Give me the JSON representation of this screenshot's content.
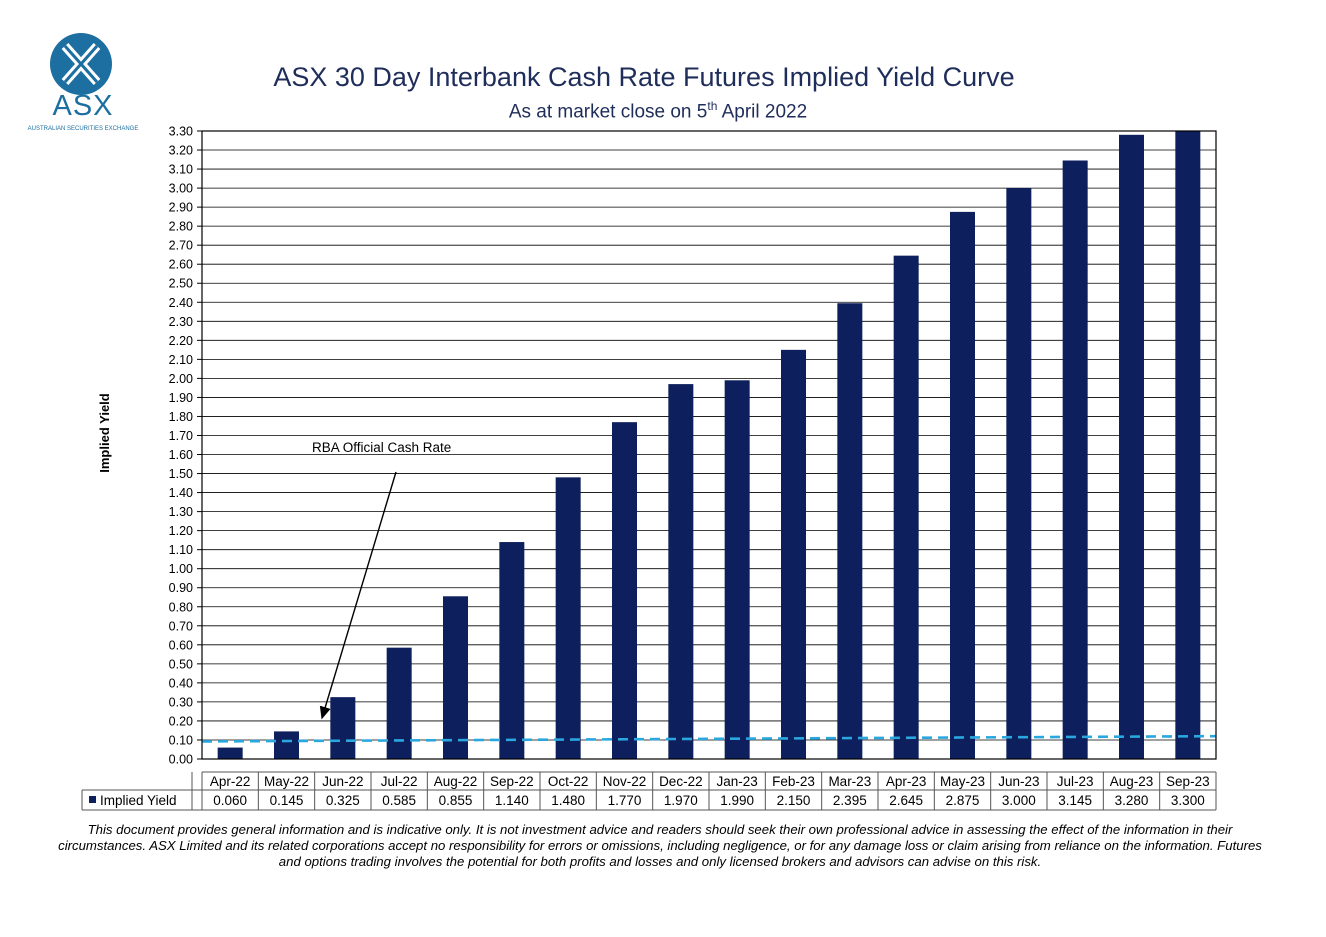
{
  "logo": {
    "wordmark": "ASX",
    "subtitle": "AUSTRALIAN SECURITIES EXCHANGE",
    "mark_color": "#1c6fa0"
  },
  "header": {
    "title": "ASX 30 Day Interbank Cash Rate Futures Implied Yield Curve",
    "subtitle_prefix": "As at market close on 5",
    "subtitle_sup": "th",
    "subtitle_suffix": " April 2022"
  },
  "chart_data": {
    "type": "bar",
    "title": "ASX 30 Day Interbank Cash Rate Futures Implied Yield Curve",
    "ylabel": "Implied Yield",
    "xlabel": "",
    "ylim": [
      0,
      3.3
    ],
    "ytick_step": 0.1,
    "grid": true,
    "categories": [
      "Apr-22",
      "May-22",
      "Jun-22",
      "Jul-22",
      "Aug-22",
      "Sep-22",
      "Oct-22",
      "Nov-22",
      "Dec-22",
      "Jan-23",
      "Feb-23",
      "Mar-23",
      "Apr-23",
      "May-23",
      "Jun-23",
      "Jul-23",
      "Aug-23",
      "Sep-23"
    ],
    "series": [
      {
        "name": "Implied Yield",
        "color": "#0d1f5c",
        "values": [
          0.06,
          0.145,
          0.325,
          0.585,
          0.855,
          1.14,
          1.48,
          1.77,
          1.97,
          1.99,
          2.15,
          2.395,
          2.645,
          2.875,
          3.0,
          3.145,
          3.28,
          3.3
        ],
        "labels": [
          "0.060",
          "0.145",
          "0.325",
          "0.585",
          "0.855",
          "1.140",
          "1.480",
          "1.770",
          "1.970",
          "1.990",
          "2.150",
          "2.395",
          "2.645",
          "2.875",
          "3.000",
          "3.145",
          "3.280",
          "3.300"
        ]
      }
    ],
    "reference_line": {
      "value": 0.1,
      "value_end": 0.12,
      "color": "#2aa7de",
      "style": "dashed"
    },
    "annotation": {
      "text": "RBA Official Cash Rate"
    },
    "data_table": true
  },
  "footer": {
    "disclaimer": "This document provides general information and is indicative only. It is not investment advice and readers should seek their own professional advice in assessing the effect of the information in their circumstances. ASX Limited and its related corporations accept no responsibility for errors or omissions, including negligence, or for any damage loss or claim arising from reliance on the information. Futures and options trading involves the potential for both profits and losses and only licensed brokers and advisors can advise on this risk."
  }
}
